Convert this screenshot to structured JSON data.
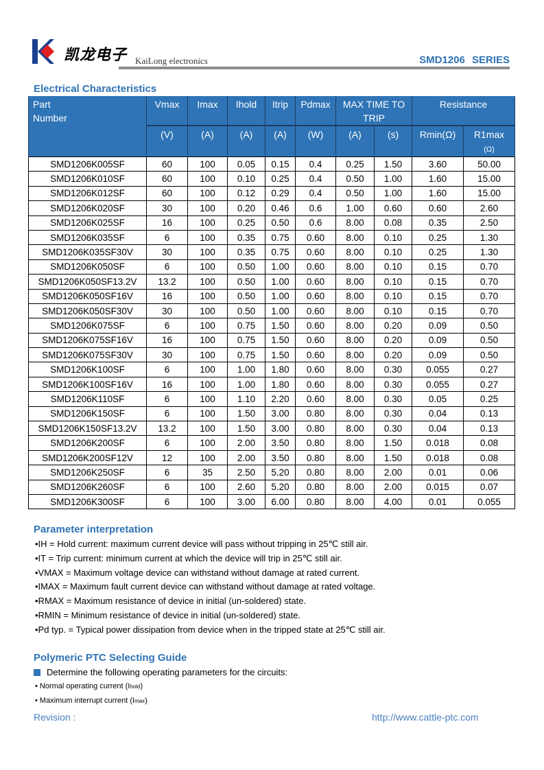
{
  "header": {
    "brand_cn": "凯龙电子",
    "brand_en": "KaiLong electronics",
    "series": "SMD1206   SERIES",
    "logo_colors": {
      "k": "#1b3f8f",
      "diamond": "#e02020"
    }
  },
  "electrical": {
    "title": "Electrical Characteristics",
    "headers": {
      "part_line1": "Part",
      "part_line2": "Number",
      "vmax": "Vmax",
      "imax": "Imax",
      "ihold": "Ihold",
      "itrip": "Itrip",
      "pdmax": "Pdmax",
      "time_line1": "MAX TIME TO",
      "time_line2": "TRIP",
      "resistance": "Resistance",
      "units": [
        "(V)",
        "(A)",
        "(A)",
        "(A)",
        "(W)",
        "(A)",
        "(s)",
        "Rmin(Ω)"
      ],
      "r1max_line1": "R1max",
      "r1max_line2": "(Ω)"
    },
    "rows": [
      [
        "SMD1206K005SF",
        "60",
        "100",
        "0.05",
        "0.15",
        "0.4",
        "0.25",
        "1.50",
        "3.60",
        "50.00"
      ],
      [
        "SMD1206K010SF",
        "60",
        "100",
        "0.10",
        "0.25",
        "0.4",
        "0.50",
        "1.00",
        "1.60",
        "15.00"
      ],
      [
        "SMD1206K012SF",
        "60",
        "100",
        "0.12",
        "0.29",
        "0.4",
        "0.50",
        "1.00",
        "1.60",
        "15.00"
      ],
      [
        "SMD1206K020SF",
        "30",
        "100",
        "0.20",
        "0.46",
        "0.6",
        "1.00",
        "0.60",
        "0.60",
        "2.60"
      ],
      [
        "SMD1206K025SF",
        "16",
        "100",
        "0.25",
        "0.50",
        "0.6",
        "8.00",
        "0.08",
        "0.35",
        "2.50"
      ],
      [
        "SMD1206K035SF",
        "6",
        "100",
        "0.35",
        "0.75",
        "0.60",
        "8.00",
        "0.10",
        "0.25",
        "1.30"
      ],
      [
        "SMD1206K035SF30V",
        "30",
        "100",
        "0.35",
        "0.75",
        "0.60",
        "8.00",
        "0.10",
        "0.25",
        "1.30"
      ],
      [
        "SMD1206K050SF",
        "6",
        "100",
        "0.50",
        "1.00",
        "0.60",
        "8.00",
        "0.10",
        "0.15",
        "0.70"
      ],
      [
        "SMD1206K050SF13.2V",
        "13.2",
        "100",
        "0.50",
        "1.00",
        "0.60",
        "8.00",
        "0.10",
        "0.15",
        "0.70"
      ],
      [
        "SMD1206K050SF16V",
        "16",
        "100",
        "0.50",
        "1.00",
        "0.60",
        "8.00",
        "0.10",
        "0.15",
        "0.70"
      ],
      [
        "SMD1206K050SF30V",
        "30",
        "100",
        "0.50",
        "1.00",
        "0.60",
        "8.00",
        "0.10",
        "0.15",
        "0.70"
      ],
      [
        "SMD1206K075SF",
        "6",
        "100",
        "0.75",
        "1.50",
        "0.60",
        "8.00",
        "0.20",
        "0.09",
        "0.50"
      ],
      [
        "SMD1206K075SF16V",
        "16",
        "100",
        "0.75",
        "1.50",
        "0.60",
        "8.00",
        "0.20",
        "0.09",
        "0.50"
      ],
      [
        "SMD1206K075SF30V",
        "30",
        "100",
        "0.75",
        "1.50",
        "0.60",
        "8.00",
        "0.20",
        "0.09",
        "0.50"
      ],
      [
        "SMD1206K100SF",
        "6",
        "100",
        "1.00",
        "1.80",
        "0.60",
        "8.00",
        "0.30",
        "0.055",
        "0.27"
      ],
      [
        "SMD1206K100SF16V",
        "16",
        "100",
        "1.00",
        "1.80",
        "0.60",
        "8.00",
        "0.30",
        "0.055",
        "0.27"
      ],
      [
        "SMD1206K110SF",
        "6",
        "100",
        "1.10",
        "2.20",
        "0.60",
        "8.00",
        "0.30",
        "0.05",
        "0.25"
      ],
      [
        "SMD1206K150SF",
        "6",
        "100",
        "1.50",
        "3.00",
        "0.80",
        "8.00",
        "0.30",
        "0.04",
        "0.13"
      ],
      [
        "SMD1206K150SF13.2V",
        "13.2",
        "100",
        "1.50",
        "3.00",
        "0.80",
        "8.00",
        "0.30",
        "0.04",
        "0.13"
      ],
      [
        "SMD1206K200SF",
        "6",
        "100",
        "2.00",
        "3.50",
        "0.80",
        "8.00",
        "1.50",
        "0.018",
        "0.08"
      ],
      [
        "SMD1206K200SF12V",
        "12",
        "100",
        "2.00",
        "3.50",
        "0.80",
        "8.00",
        "1.50",
        "0.018",
        "0.08"
      ],
      [
        "SMD1206K250SF",
        "6",
        "35",
        "2.50",
        "5.20",
        "0.80",
        "8.00",
        "2.00",
        "0.01",
        "0.06"
      ],
      [
        "SMD1206K260SF",
        "6",
        "100",
        "2.60",
        "5.20",
        "0.80",
        "8.00",
        "2.00",
        "0.015",
        "0.07"
      ],
      [
        "SMD1206K300SF",
        "6",
        "100",
        "3.00",
        "6.00",
        "0.80",
        "8.00",
        "4.00",
        "0.01",
        "0.055"
      ]
    ]
  },
  "params": {
    "title": "Parameter interpretation",
    "items": [
      "•IH = Hold current: maximum current device will pass without tripping in 25℃  still air.",
      "•IT = Trip current: minimum current at which the device will trip in 25℃  still air.",
      "•VMAX = Maximum voltage device can withstand without damage at rated current.",
      "•IMAX = Maximum fault current device can withstand without damage at rated voltage.",
      "•RMAX = Maximum resistance of device in initial (un-soldered) state.",
      "•RMIN = Minimum resistance of device in initial (un-soldered) state.",
      "•Pd typ. = Typical power dissipation from device when in the tripped state at 25℃  still air."
    ]
  },
  "guide": {
    "title": "Polymeric PTC Selecting Guide",
    "lead": "Determine the following operating parameters for the circuits:",
    "item1": "• Normal operating current (I",
    "item1_sub": "hold",
    "item1_end": ")",
    "item2": "• Maximum interrupt current (I",
    "item2_sub": "max",
    "item2_end": ")"
  },
  "footer": {
    "revision": "Revision :",
    "url": "http://www.cattle-ptc.com"
  }
}
